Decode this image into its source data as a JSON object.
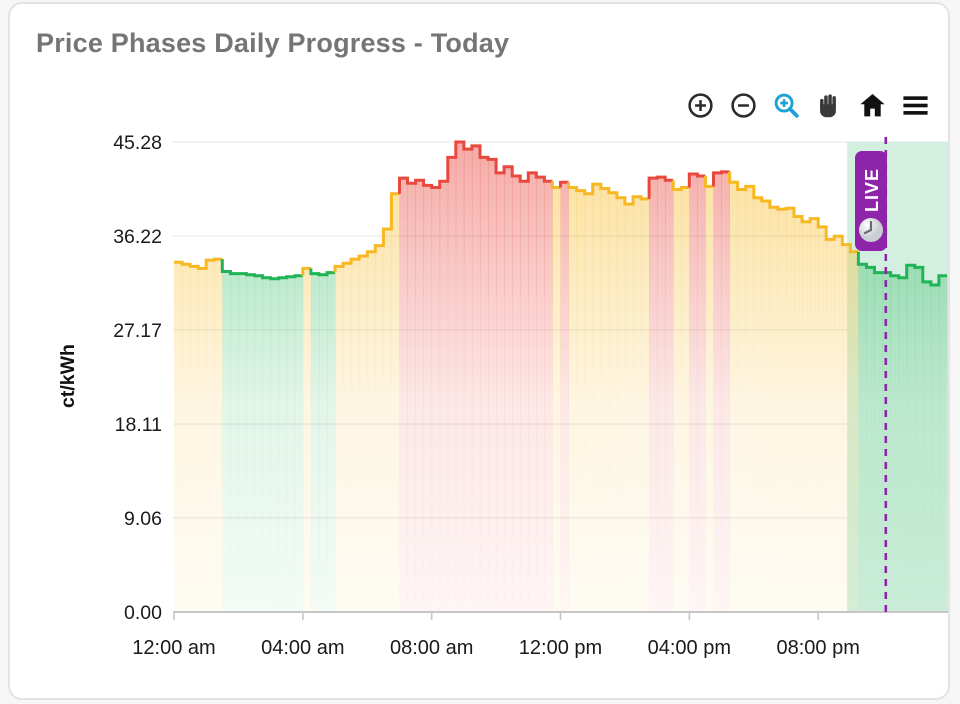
{
  "card": {
    "title": "Price Phases Daily Progress - Today"
  },
  "toolbar": {
    "buttons": [
      {
        "id": "zoom-in",
        "label": "Zoom in"
      },
      {
        "id": "zoom-out",
        "label": "Zoom out"
      },
      {
        "id": "box-zoom",
        "label": "Zoom",
        "active": true
      },
      {
        "id": "pan",
        "label": "Pan"
      },
      {
        "id": "home",
        "label": "Reset axes"
      },
      {
        "id": "menu",
        "label": "Menu"
      }
    ],
    "active_color": "#1da2d8",
    "icon_color": "#2b2b2b"
  },
  "chart_data": {
    "type": "step-area",
    "title": "Price Phases Daily Progress - Today",
    "ylabel": "ct/kWh",
    "xlabel": "",
    "ylim": [
      0,
      45.28
    ],
    "xlim_hours": [
      0,
      24
    ],
    "grid": true,
    "y_tick_values": [
      0,
      9.06,
      18.11,
      27.17,
      36.22,
      45.28
    ],
    "y_tick_labels": [
      "0.00",
      "9.06",
      "18.11",
      "27.17",
      "36.22",
      "45.28"
    ],
    "x_tick_hours": [
      0,
      4,
      8,
      12,
      16,
      20
    ],
    "x_tick_labels": [
      "12:00 am",
      "04:00 am",
      "08:00 am",
      "12:00 pm",
      "04:00 pm",
      "08:00 pm"
    ],
    "interval_minutes": 15,
    "phase_colors": {
      "g": "#1fb455",
      "y": "#f7b821",
      "r": "#e8483e"
    },
    "live": {
      "label": "LIVE",
      "badge_color": "#8e24aa",
      "line_color": "#8e24aa",
      "now_hour": 22.1,
      "window_start_hour": 20.9,
      "window_fill": "#d3efdf",
      "clock_icon": "clock-icon"
    },
    "points": [
      [
        33.7,
        "y"
      ],
      [
        33.5,
        "y"
      ],
      [
        33.3,
        "y"
      ],
      [
        33.1,
        "y"
      ],
      [
        33.9,
        "y"
      ],
      [
        34.0,
        "y"
      ],
      [
        32.8,
        "g"
      ],
      [
        32.6,
        "g"
      ],
      [
        32.6,
        "g"
      ],
      [
        32.5,
        "g"
      ],
      [
        32.4,
        "g"
      ],
      [
        32.2,
        "g"
      ],
      [
        32.1,
        "g"
      ],
      [
        32.2,
        "g"
      ],
      [
        32.3,
        "g"
      ],
      [
        32.4,
        "g"
      ],
      [
        33.1,
        "y"
      ],
      [
        32.6,
        "g"
      ],
      [
        32.5,
        "g"
      ],
      [
        32.7,
        "g"
      ],
      [
        33.3,
        "y"
      ],
      [
        33.6,
        "y"
      ],
      [
        34.0,
        "y"
      ],
      [
        34.3,
        "y"
      ],
      [
        34.7,
        "y"
      ],
      [
        35.3,
        "y"
      ],
      [
        36.9,
        "y"
      ],
      [
        40.3,
        "y"
      ],
      [
        41.8,
        "r"
      ],
      [
        41.3,
        "r"
      ],
      [
        41.6,
        "r"
      ],
      [
        41.1,
        "r"
      ],
      [
        40.9,
        "r"
      ],
      [
        41.5,
        "r"
      ],
      [
        43.8,
        "r"
      ],
      [
        45.28,
        "r"
      ],
      [
        44.6,
        "r"
      ],
      [
        44.9,
        "r"
      ],
      [
        43.8,
        "r"
      ],
      [
        43.6,
        "r"
      ],
      [
        42.3,
        "r"
      ],
      [
        42.9,
        "r"
      ],
      [
        42.0,
        "r"
      ],
      [
        41.5,
        "r"
      ],
      [
        42.3,
        "r"
      ],
      [
        41.9,
        "r"
      ],
      [
        41.5,
        "r"
      ],
      [
        40.9,
        "y"
      ],
      [
        41.4,
        "r"
      ],
      [
        40.9,
        "y"
      ],
      [
        40.6,
        "y"
      ],
      [
        40.3,
        "y"
      ],
      [
        41.2,
        "y"
      ],
      [
        40.8,
        "y"
      ],
      [
        40.4,
        "y"
      ],
      [
        39.9,
        "y"
      ],
      [
        39.3,
        "y"
      ],
      [
        40.0,
        "y"
      ],
      [
        39.8,
        "y"
      ],
      [
        41.8,
        "r"
      ],
      [
        41.9,
        "r"
      ],
      [
        41.6,
        "r"
      ],
      [
        40.7,
        "y"
      ],
      [
        40.9,
        "y"
      ],
      [
        42.2,
        "r"
      ],
      [
        42.0,
        "r"
      ],
      [
        41.0,
        "y"
      ],
      [
        42.3,
        "r"
      ],
      [
        42.4,
        "r"
      ],
      [
        41.4,
        "y"
      ],
      [
        40.7,
        "y"
      ],
      [
        41.0,
        "y"
      ],
      [
        39.9,
        "y"
      ],
      [
        39.6,
        "y"
      ],
      [
        39.0,
        "y"
      ],
      [
        38.8,
        "y"
      ],
      [
        38.9,
        "y"
      ],
      [
        38.1,
        "y"
      ],
      [
        37.6,
        "y"
      ],
      [
        37.9,
        "y"
      ],
      [
        37.1,
        "y"
      ],
      [
        35.9,
        "y"
      ],
      [
        36.2,
        "y"
      ],
      [
        35.4,
        "y"
      ],
      [
        34.7,
        "y"
      ],
      [
        33.5,
        "g"
      ],
      [
        33.2,
        "g"
      ],
      [
        32.7,
        "g"
      ],
      [
        32.7,
        "g"
      ],
      [
        32.4,
        "g"
      ],
      [
        32.2,
        "g"
      ],
      [
        33.4,
        "g"
      ],
      [
        33.2,
        "g"
      ],
      [
        31.8,
        "g"
      ],
      [
        31.5,
        "g"
      ],
      [
        32.4,
        "g"
      ]
    ]
  }
}
